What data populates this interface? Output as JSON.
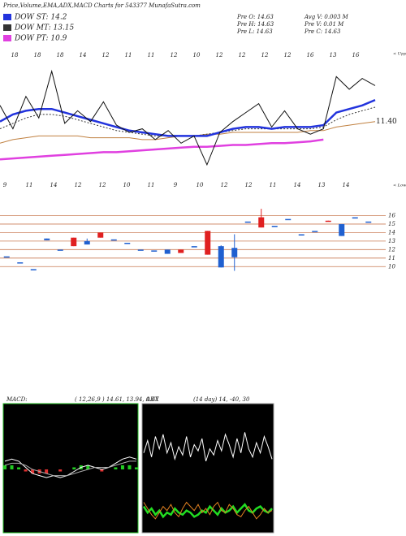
{
  "header": {
    "title": "Price,Volume,EMA,ADX,MACD Charts for 543377 MunafaSutra.com"
  },
  "legend": [
    {
      "label": "DOW ST: 14.2",
      "color": "#2233dd"
    },
    {
      "label": "DOW MT: 13.15",
      "color": "#333333"
    },
    {
      "label": "DOW PT: 10.9",
      "color": "#e040e0"
    }
  ],
  "info": [
    "Pre  O: 14.63",
    "Avg V: 0.003 M",
    "Pre  H: 14.63",
    "Pre  V: 0.01 M",
    "Pre  L: 14.63",
    "Pre  C: 14.63"
  ],
  "chart_data": [
    {
      "type": "line",
      "annotation": "11.40",
      "upper_label": "< Uppe",
      "lower_label": "< Lowe",
      "top_labels": [
        "18",
        "18",
        "18",
        "14",
        "12",
        "11",
        "11",
        "12",
        "10",
        "12",
        "12",
        "12",
        "12",
        "16",
        "13",
        "16"
      ],
      "bottom_labels": [
        "9",
        "11",
        "14",
        "12",
        "12",
        "10",
        "11",
        "9",
        "10",
        "12",
        "12",
        "11",
        "14",
        "13",
        "14"
      ],
      "ylim": [
        8,
        15
      ],
      "series": [
        {
          "color": "#c08040",
          "values": [
            10.2,
            10.4,
            10.5,
            10.6,
            10.6,
            10.6,
            10.6,
            10.5,
            10.5,
            10.5,
            10.5,
            10.4,
            10.4,
            10.5,
            10.6,
            10.6,
            10.7,
            10.7,
            10.8,
            10.8,
            10.8,
            10.8,
            10.8,
            10.8,
            10.9,
            10.9,
            11.1,
            11.2,
            11.3,
            11.4
          ]
        },
        {
          "color": "#e040e0",
          "values": [
            9.3,
            9.35,
            9.4,
            9.45,
            9.5,
            9.55,
            9.6,
            9.65,
            9.7,
            9.7,
            9.75,
            9.8,
            9.85,
            9.9,
            9.95,
            10.0,
            10.0,
            10.05,
            10.1,
            10.1,
            10.15,
            10.2,
            10.2,
            10.25,
            10.3,
            10.4,
            null,
            null,
            null,
            null
          ]
        },
        {
          "color": "#333333",
          "dashed": true,
          "values": [
            11.0,
            11.3,
            11.6,
            11.8,
            11.8,
            11.7,
            11.5,
            11.3,
            11.1,
            10.9,
            10.8,
            10.7,
            10.6,
            10.6,
            10.6,
            10.6,
            10.7,
            10.8,
            10.9,
            11.0,
            11.0,
            11.0,
            11.0,
            11.0,
            11.0,
            11.1,
            11.5,
            11.8,
            12.0,
            12.2
          ]
        },
        {
          "color": "#2233dd",
          "values": [
            11.4,
            11.8,
            12.0,
            12.1,
            12.1,
            11.9,
            11.7,
            11.5,
            11.3,
            11.1,
            10.9,
            10.8,
            10.7,
            10.6,
            10.6,
            10.6,
            10.6,
            10.8,
            11.0,
            11.1,
            11.1,
            11.0,
            11.1,
            11.1,
            11.1,
            11.2,
            11.9,
            12.1,
            12.3,
            12.6
          ]
        },
        {
          "color": "#111111",
          "values": [
            12.3,
            11.0,
            12.8,
            11.6,
            14.2,
            11.3,
            12.0,
            11.4,
            12.5,
            11.2,
            10.8,
            11.0,
            10.4,
            10.9,
            10.2,
            10.6,
            9.0,
            10.8,
            11.4,
            11.9,
            12.4,
            11.1,
            12.0,
            11.0,
            10.7,
            11.0,
            13.9,
            13.2,
            13.8,
            13.4
          ]
        }
      ]
    },
    {
      "type": "candlestick",
      "ylim": [
        8.4,
        17
      ],
      "yticks": [
        10,
        11,
        12,
        13,
        14,
        15,
        16
      ],
      "up_color": "#e02020",
      "down_color": "#2060d0",
      "grid_color": "#c87850",
      "candles": [
        {
          "o": 11.2,
          "h": 11.2,
          "l": 11.2,
          "c": 11.2
        },
        {
          "o": 10.5,
          "h": 10.5,
          "l": 10.5,
          "c": 10.5
        },
        {
          "o": 9.7,
          "h": 9.7,
          "l": 9.7,
          "c": 9.7
        },
        {
          "o": 13.3,
          "h": 13.3,
          "l": 13.1,
          "c": 13.1
        },
        {
          "o": 12.0,
          "h": 12.0,
          "l": 12.0,
          "c": 12.0
        },
        {
          "o": 12.4,
          "h": 13.4,
          "l": 12.4,
          "c": 13.4
        },
        {
          "o": 13.0,
          "h": 13.3,
          "l": 12.6,
          "c": 12.6
        },
        {
          "o": 13.4,
          "h": 14.0,
          "l": 13.4,
          "c": 14.0
        },
        {
          "o": 13.2,
          "h": 13.2,
          "l": 13.2,
          "c": 13.2
        },
        {
          "o": 12.8,
          "h": 12.8,
          "l": 12.8,
          "c": 12.8
        },
        {
          "o": 12.0,
          "h": 12.0,
          "l": 12.0,
          "c": 12.0
        },
        {
          "o": 11.9,
          "h": 11.9,
          "l": 11.9,
          "c": 11.9
        },
        {
          "o": 12.0,
          "h": 12.0,
          "l": 11.5,
          "c": 11.5
        },
        {
          "o": 11.6,
          "h": 12.0,
          "l": 11.6,
          "c": 12.0
        },
        {
          "o": 12.4,
          "h": 12.4,
          "l": 12.4,
          "c": 12.4
        },
        {
          "o": 11.4,
          "h": 14.2,
          "l": 11.4,
          "c": 14.2
        },
        {
          "o": 12.4,
          "h": 12.5,
          "l": 9.9,
          "c": 9.9
        },
        {
          "o": 12.2,
          "h": 13.8,
          "l": 9.5,
          "c": 11.1
        },
        {
          "o": 15.3,
          "h": 15.3,
          "l": 15.3,
          "c": 15.3
        },
        {
          "o": 14.6,
          "h": 16.8,
          "l": 14.6,
          "c": 15.8
        },
        {
          "o": 14.8,
          "h": 14.8,
          "l": 14.8,
          "c": 14.8
        },
        {
          "o": 15.6,
          "h": 15.6,
          "l": 15.6,
          "c": 15.6
        },
        {
          "o": 13.8,
          "h": 13.8,
          "l": 13.8,
          "c": 13.8
        },
        {
          "o": 14.2,
          "h": 14.2,
          "l": 14.2,
          "c": 14.2
        },
        {
          "o": 15.3,
          "h": 15.4,
          "l": 15.3,
          "c": 15.4
        },
        {
          "o": 15.0,
          "h": 15.0,
          "l": 13.6,
          "c": 13.6
        },
        {
          "o": 15.8,
          "h": 15.8,
          "l": 15.8,
          "c": 15.8
        },
        {
          "o": 15.3,
          "h": 15.3,
          "l": 15.3,
          "c": 15.3
        }
      ]
    },
    {
      "type": "macd",
      "title": "MACD:",
      "subtitle": "( 12,26,9 ) 14.61, 13.94, 0.67",
      "ylim": [
        -3,
        3
      ],
      "series": [
        {
          "color": "#ffffff",
          "values": [
            0.4,
            0.5,
            0.4,
            0.1,
            -0.2,
            -0.3,
            -0.4,
            -0.3,
            -0.4,
            -0.3,
            -0.1,
            0.1,
            0.2,
            0.1,
            0.0,
            0.1,
            0.3,
            0.5,
            0.6,
            0.5
          ]
        },
        {
          "color": "#aaaaaa",
          "values": [
            0.2,
            0.3,
            0.3,
            0.2,
            0.0,
            -0.1,
            -0.2,
            -0.3,
            -0.3,
            -0.3,
            -0.2,
            -0.1,
            0.0,
            0.1,
            0.1,
            0.1,
            0.2,
            0.3,
            0.4,
            0.4
          ]
        }
      ],
      "histogram": {
        "pos_color": "#22cc22",
        "neg_color": "#e03030",
        "values": [
          0.2,
          0.2,
          0.1,
          -0.1,
          -0.2,
          -0.2,
          -0.2,
          0.0,
          -0.1,
          0.0,
          0.1,
          0.2,
          0.2,
          0.0,
          -0.1,
          0.0,
          0.1,
          0.2,
          0.2,
          0.1
        ]
      }
    },
    {
      "type": "adx",
      "title": "ADX",
      "subtitle": "(14  day) 14,  -40, 30",
      "ylim": [
        0,
        60
      ],
      "series": [
        {
          "color": "#ffffff",
          "values": [
            38,
            44,
            36,
            46,
            40,
            47,
            38,
            43,
            35,
            41,
            37,
            46,
            36,
            42,
            39,
            45,
            34,
            40,
            37,
            44,
            39,
            47,
            42,
            36,
            45,
            38,
            48,
            40,
            36,
            43,
            38,
            46,
            41,
            35
          ]
        },
        {
          "color": "#22dd22",
          "values": [
            12,
            9,
            11,
            8,
            10,
            7,
            9,
            8,
            11,
            9,
            8,
            10,
            9,
            7,
            8,
            10,
            9,
            12,
            10,
            8,
            11,
            9,
            10,
            12,
            9,
            11,
            13,
            10,
            9,
            11,
            12,
            10,
            9,
            11
          ]
        },
        {
          "color": "#e08020",
          "values": [
            14,
            11,
            8,
            6,
            9,
            12,
            10,
            13,
            9,
            7,
            11,
            14,
            12,
            10,
            13,
            9,
            11,
            8,
            12,
            14,
            10,
            9,
            13,
            11,
            8,
            7,
            10,
            12,
            9,
            6,
            8,
            11,
            9,
            10
          ]
        }
      ]
    }
  ]
}
